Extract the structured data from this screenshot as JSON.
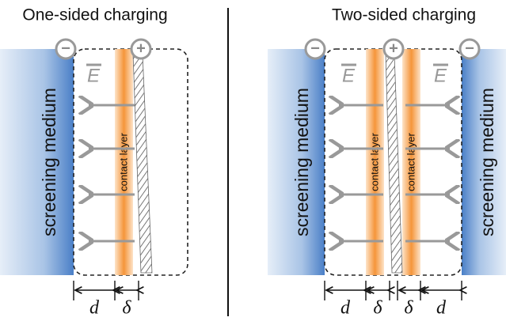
{
  "panels": [
    {
      "title": "One-sided charging",
      "medium_labels": [
        "screening medium"
      ],
      "layer_labels": [
        "contact layer"
      ],
      "field_labels": [
        "E"
      ],
      "charges": [
        "−",
        "+"
      ],
      "dimensions": [
        "d",
        "δ"
      ]
    },
    {
      "title": "Two-sided charging",
      "medium_labels": [
        "screening medium",
        "screening medium"
      ],
      "layer_labels": [
        "contact layer",
        "contact layer"
      ],
      "field_labels": [
        "E",
        "E"
      ],
      "charges": [
        "−",
        "+",
        "−"
      ],
      "dimensions": [
        "d",
        "δ",
        "δ",
        "d"
      ]
    }
  ]
}
